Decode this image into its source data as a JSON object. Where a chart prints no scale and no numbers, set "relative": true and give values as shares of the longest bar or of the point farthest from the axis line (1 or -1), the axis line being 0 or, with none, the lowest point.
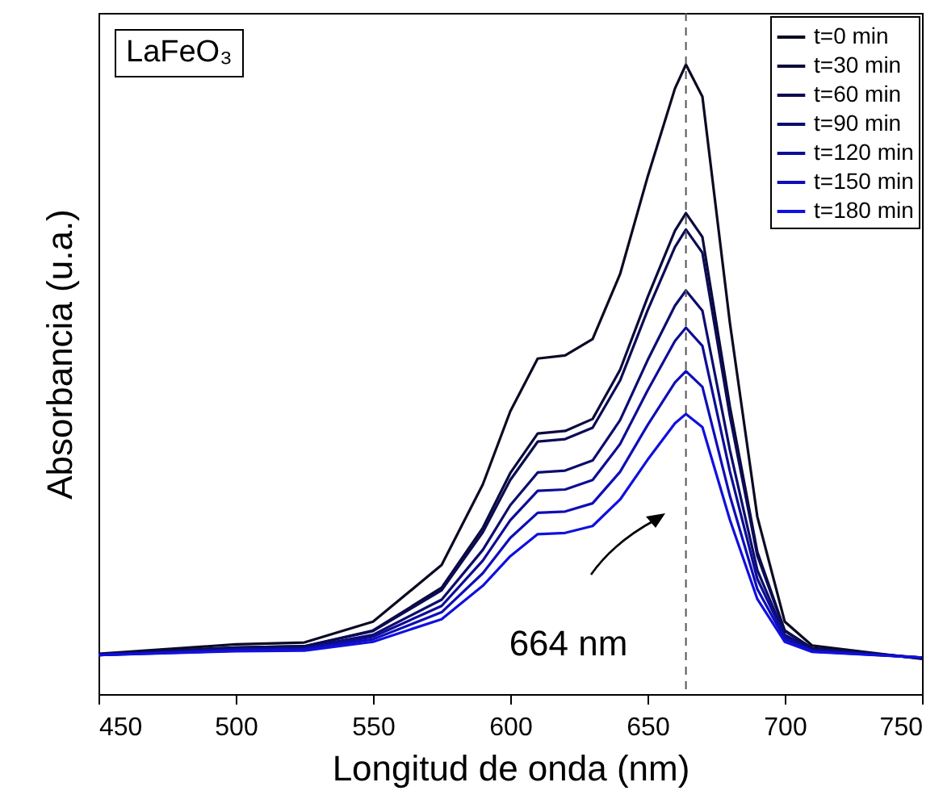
{
  "chart_data": {
    "type": "line",
    "title": "LaFeO₃",
    "xlabel": "Longitud de onda (nm)",
    "ylabel": "Absorbancia (u.a.)",
    "relative": true,
    "xlim": [
      450,
      750
    ],
    "xticks": [
      450,
      500,
      550,
      600,
      650,
      700,
      750
    ],
    "x": [
      450,
      500,
      525,
      550,
      575,
      590,
      600,
      610,
      620,
      630,
      640,
      650,
      660,
      664,
      670,
      680,
      690,
      700,
      710,
      750
    ],
    "series": [
      {
        "name": "t=0 min",
        "color": "#0a0a23",
        "values": [
          0.064,
          0.079,
          0.082,
          0.115,
          0.205,
          0.333,
          0.449,
          0.533,
          0.538,
          0.564,
          0.667,
          0.821,
          0.962,
          1,
          0.949,
          0.59,
          0.282,
          0.115,
          0.077,
          0.056
        ]
      },
      {
        "name": "t=30 min",
        "color": "#0a0a3c",
        "values": [
          0.063,
          0.074,
          0.076,
          0.101,
          0.169,
          0.264,
          0.351,
          0.414,
          0.418,
          0.437,
          0.515,
          0.63,
          0.736,
          0.764,
          0.726,
          0.457,
          0.226,
          0.101,
          0.073,
          0.057
        ]
      },
      {
        "name": "t=60 min",
        "color": "#0b0b55",
        "values": [
          0.063,
          0.074,
          0.076,
          0.1,
          0.165,
          0.257,
          0.34,
          0.401,
          0.405,
          0.423,
          0.498,
          0.609,
          0.71,
          0.738,
          0.701,
          0.442,
          0.22,
          0.1,
          0.072,
          0.057
        ]
      },
      {
        "name": "t=90 min",
        "color": "#0c0c6e",
        "values": [
          0.062,
          0.072,
          0.074,
          0.094,
          0.15,
          0.229,
          0.3,
          0.352,
          0.355,
          0.371,
          0.435,
          0.53,
          0.617,
          0.641,
          0.609,
          0.388,
          0.197,
          0.094,
          0.071,
          0.058
        ]
      },
      {
        "name": "t=120 min",
        "color": "#0d0d96",
        "values": [
          0.062,
          0.071,
          0.072,
          0.091,
          0.14,
          0.212,
          0.276,
          0.323,
          0.325,
          0.34,
          0.397,
          0.482,
          0.561,
          0.582,
          0.553,
          0.354,
          0.183,
          0.091,
          0.069,
          0.058
        ]
      },
      {
        "name": "t=150 min",
        "color": "#0e0eb8",
        "values": [
          0.062,
          0.069,
          0.071,
          0.087,
          0.13,
          0.192,
          0.248,
          0.288,
          0.29,
          0.303,
          0.353,
          0.427,
          0.495,
          0.513,
          0.488,
          0.315,
          0.167,
          0.087,
          0.068,
          0.058
        ]
      },
      {
        "name": "t=180 min",
        "color": "#1010e0",
        "values": [
          0.062,
          0.068,
          0.069,
          0.083,
          0.119,
          0.172,
          0.219,
          0.254,
          0.256,
          0.267,
          0.309,
          0.372,
          0.43,
          0.445,
          0.424,
          0.277,
          0.151,
          0.083,
          0.067,
          0.058
        ]
      }
    ],
    "ref_lines": [
      {
        "axis": "x",
        "value": 664,
        "color": "#555555",
        "line_style": "dashed"
      }
    ],
    "annotations": [
      "664 nm"
    ],
    "legend": "top right",
    "grid": false,
    "line_style": "solid",
    "marker": "none"
  }
}
